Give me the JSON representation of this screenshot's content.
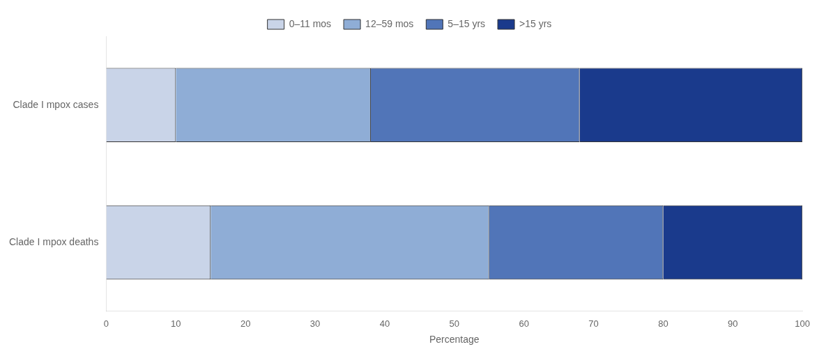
{
  "chart_data": {
    "type": "bar",
    "orientation": "horizontal",
    "stacked": true,
    "categories": [
      "Clade I mpox cases",
      "Clade I mpox deaths"
    ],
    "series": [
      {
        "name": "0–11 mos",
        "color": "#c9d4e8",
        "values": [
          10,
          15
        ]
      },
      {
        "name": "12–59 mos",
        "color": "#8fadd6",
        "values": [
          28,
          40
        ]
      },
      {
        "name": "5–15 yrs",
        "color": "#5175b8",
        "values": [
          30,
          25
        ]
      },
      {
        "name": ">15 yrs",
        "color": "#1a3a8c",
        "values": [
          32,
          20
        ]
      }
    ],
    "xlabel": "Percentage",
    "xlim": [
      0,
      100
    ],
    "xticks": [
      0,
      10,
      20,
      30,
      40,
      50,
      60,
      70,
      80,
      90,
      100
    ],
    "grid": false,
    "legend": "top"
  }
}
